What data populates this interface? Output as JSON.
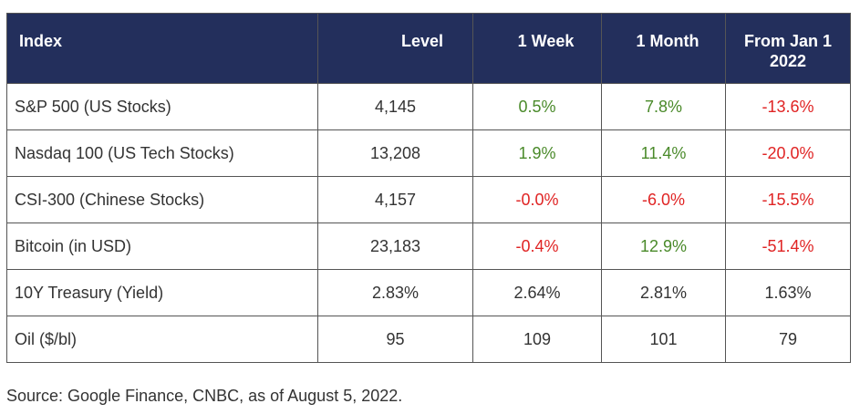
{
  "table": {
    "headers": {
      "index": "Index",
      "level": "Level",
      "week": "1 Week",
      "month": "1 Month",
      "ytd_line1": "From Jan 1",
      "ytd_line2": "2022"
    },
    "rows": [
      {
        "name": "S&P 500 (US Stocks)",
        "level": "4,145",
        "week": "0.5%",
        "month": "7.8%",
        "ytd": "-13.6%"
      },
      {
        "name": "Nasdaq 100 (US Tech Stocks)",
        "level": "13,208",
        "week": "1.9%",
        "month": "11.4%",
        "ytd": "-20.0%"
      },
      {
        "name": "CSI-300 (Chinese Stocks)",
        "level": "4,157",
        "week": "-0.0%",
        "month": "-6.0%",
        "ytd": "-15.5%"
      },
      {
        "name": "Bitcoin (in USD)",
        "level": "23,183",
        "week": "-0.4%",
        "month": "12.9%",
        "ytd": "-51.4%"
      },
      {
        "name": "10Y Treasury (Yield)",
        "level": "2.83%",
        "week": "2.64%",
        "month": "2.81%",
        "ytd": "1.63%"
      },
      {
        "name": "Oil ($/bl)",
        "level": "95",
        "week": "109",
        "month": "101",
        "ytd": "79"
      }
    ]
  },
  "source": "Source: Google Finance, CNBC, as of August 5, 2022.",
  "colors": {
    "header_bg": "#232f5c",
    "header_text": "#ffffff",
    "positive": "#4a8a2a",
    "negative": "#e02424",
    "body_text": "#333333"
  }
}
